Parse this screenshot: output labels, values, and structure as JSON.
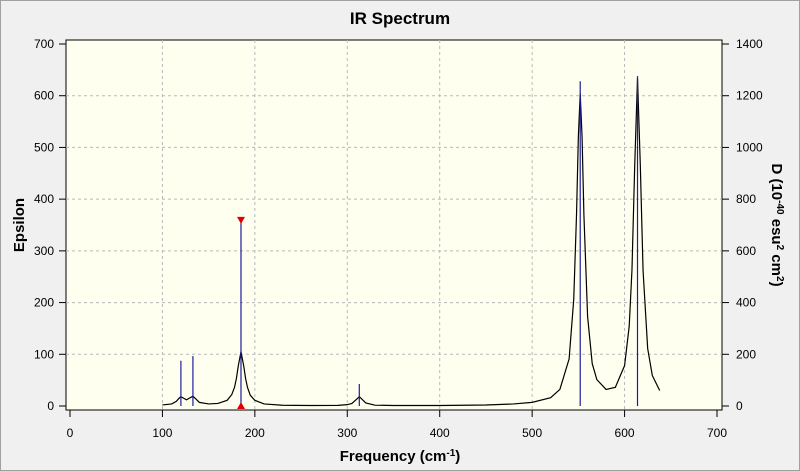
{
  "chart_data": {
    "type": "line",
    "title": "IR Spectrum",
    "x_label": [
      "Frequency (cm",
      "-1",
      ")"
    ],
    "y_label": "Epsilon",
    "y2_label": [
      "D (10",
      "-40",
      " esu",
      "2",
      " cm",
      "2",
      ")"
    ],
    "xlim": [
      0,
      700
    ],
    "xticks": [
      0,
      100,
      200,
      300,
      400,
      500,
      600,
      700
    ],
    "ylim": [
      0,
      700
    ],
    "yticks": [
      0,
      100,
      200,
      300,
      400,
      500,
      600,
      700
    ],
    "y2lim": [
      0,
      1400
    ],
    "y2ticks": [
      0,
      200,
      400,
      600,
      800,
      1000,
      1200,
      1400
    ],
    "grid": true,
    "series": [
      {
        "type": "line",
        "color": "#000000",
        "x": [
          100,
          110,
          115,
          118,
          120,
          123,
          126,
          130,
          133,
          136,
          140,
          150,
          160,
          170,
          175,
          178,
          180,
          182,
          185,
          188,
          190,
          192,
          195,
          200,
          210,
          230,
          260,
          290,
          300,
          305,
          310,
          313,
          316,
          320,
          330,
          350,
          400,
          450,
          480,
          500,
          520,
          530,
          540,
          545,
          548,
          550,
          552,
          554,
          556,
          560,
          565,
          570,
          580,
          590,
          600,
          605,
          608,
          611,
          614,
          617,
          620,
          625,
          630,
          638
        ],
        "values": [
          2,
          4,
          9,
          15,
          18,
          15,
          12,
          16,
          19,
          14,
          7,
          4,
          5,
          11,
          22,
          36,
          53,
          77,
          105,
          77,
          53,
          36,
          21,
          11,
          4,
          1.5,
          1,
          1.2,
          2.6,
          5,
          13,
          18,
          13,
          6,
          1.6,
          1,
          1,
          2,
          4,
          7,
          16,
          32,
          91,
          206,
          369,
          521,
          604,
          521,
          370,
          173,
          82,
          51,
          32,
          36,
          78,
          154,
          263,
          467,
          634,
          467,
          262,
          111,
          59,
          30
        ]
      },
      {
        "type": "stick",
        "axis": "y2",
        "color": "#1c1c9c",
        "x": [
          120,
          133,
          185,
          313,
          552,
          614
        ],
        "values": [
          175,
          193,
          720,
          85,
          1256,
          1276
        ]
      }
    ]
  }
}
